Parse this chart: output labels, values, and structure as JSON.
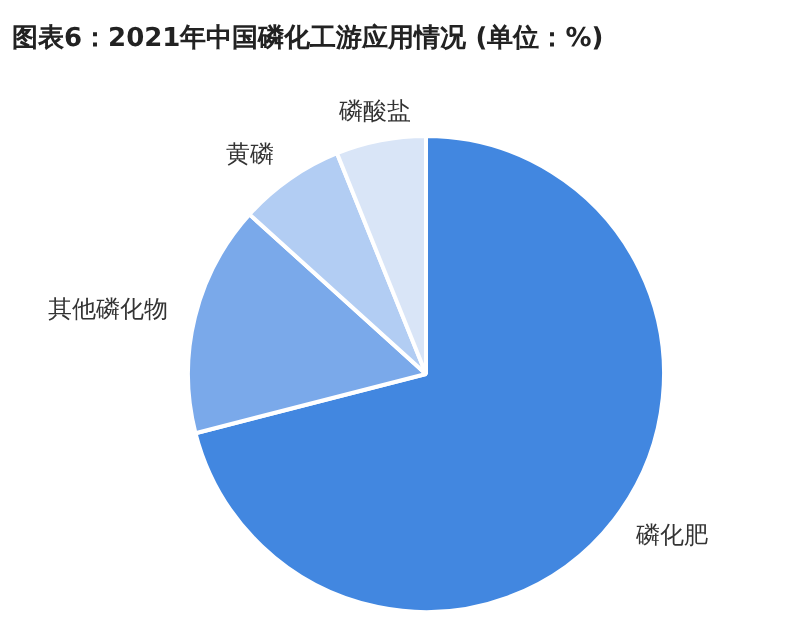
{
  "chart_data": {
    "type": "pie",
    "title": "图表6：2021年中国磷化工游应用情况 (单位：%)",
    "categories": [
      "磷化肥",
      "其他磷化物",
      "黄磷",
      "磷酸盐"
    ],
    "values": [
      71,
      15.7,
      7.2,
      6.1
    ],
    "colors": [
      "#4287e0",
      "#7aa9ea",
      "#b2cdf3",
      "#d9e5f7"
    ],
    "legend": false
  }
}
